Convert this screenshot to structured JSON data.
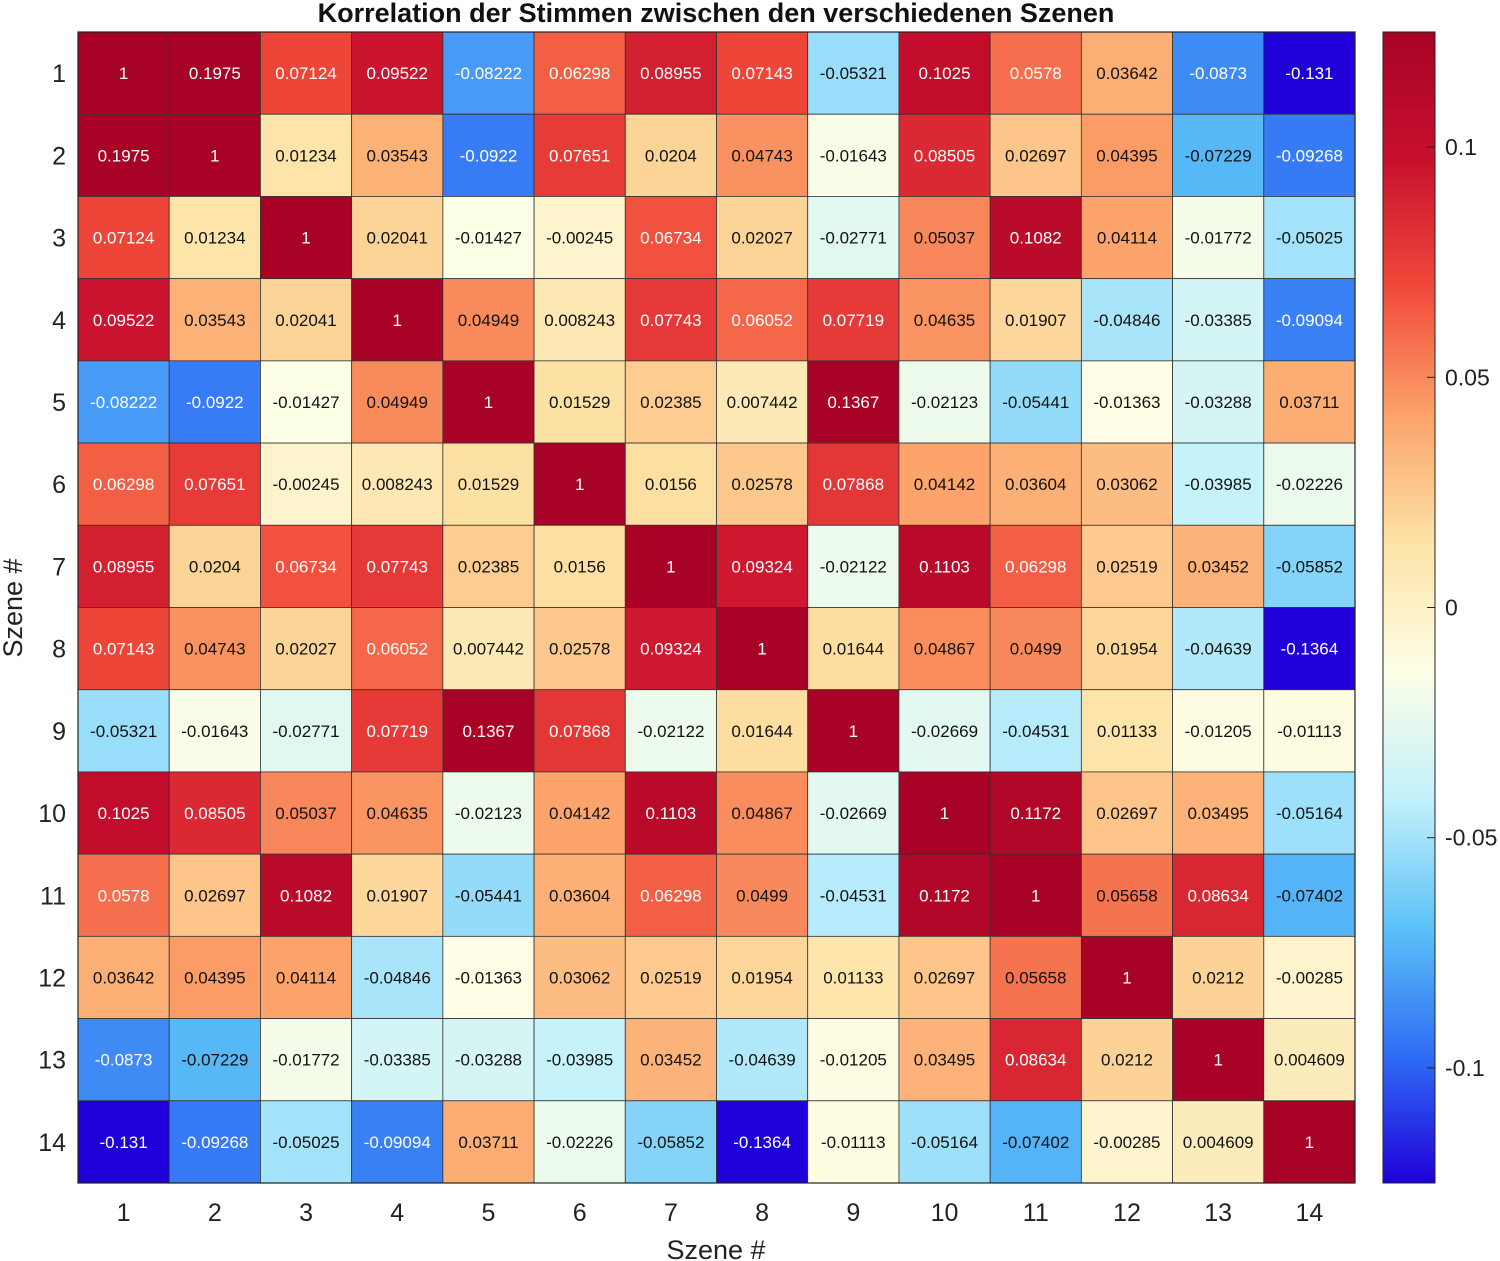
{
  "chart_data": {
    "type": "heatmap",
    "title": "Korrelation der Stimmen zwischen den verschiedenen Szenen",
    "xlabel": "Szene #",
    "ylabel": "Szene #",
    "x_categories": [
      "1",
      "2",
      "3",
      "4",
      "5",
      "6",
      "7",
      "8",
      "9",
      "10",
      "11",
      "12",
      "13",
      "14"
    ],
    "y_categories": [
      "1",
      "2",
      "3",
      "4",
      "5",
      "6",
      "7",
      "8",
      "9",
      "10",
      "11",
      "12",
      "13",
      "14"
    ],
    "values": [
      [
        "1",
        "0.1975",
        "0.07124",
        "0.09522",
        "-0.08222",
        "0.06298",
        "0.08955",
        "0.07143",
        "-0.05321",
        "0.1025",
        "0.0578",
        "0.03642",
        "-0.0873",
        "-0.131"
      ],
      [
        "0.1975",
        "1",
        "0.01234",
        "0.03543",
        "-0.0922",
        "0.07651",
        "0.0204",
        "0.04743",
        "-0.01643",
        "0.08505",
        "0.02697",
        "0.04395",
        "-0.07229",
        "-0.09268"
      ],
      [
        "0.07124",
        "0.01234",
        "1",
        "0.02041",
        "-0.01427",
        "-0.00245",
        "0.06734",
        "0.02027",
        "-0.02771",
        "0.05037",
        "0.1082",
        "0.04114",
        "-0.01772",
        "-0.05025"
      ],
      [
        "0.09522",
        "0.03543",
        "0.02041",
        "1",
        "0.04949",
        "0.008243",
        "0.07743",
        "0.06052",
        "0.07719",
        "0.04635",
        "0.01907",
        "-0.04846",
        "-0.03385",
        "-0.09094"
      ],
      [
        "-0.08222",
        "-0.0922",
        "-0.01427",
        "0.04949",
        "1",
        "0.01529",
        "0.02385",
        "0.007442",
        "0.1367",
        "-0.02123",
        "-0.05441",
        "-0.01363",
        "-0.03288",
        "0.03711"
      ],
      [
        "0.06298",
        "0.07651",
        "-0.00245",
        "0.008243",
        "0.01529",
        "1",
        "0.0156",
        "0.02578",
        "0.07868",
        "0.04142",
        "0.03604",
        "0.03062",
        "-0.03985",
        "-0.02226"
      ],
      [
        "0.08955",
        "0.0204",
        "0.06734",
        "0.07743",
        "0.02385",
        "0.0156",
        "1",
        "0.09324",
        "-0.02122",
        "0.1103",
        "0.06298",
        "0.02519",
        "0.03452",
        "-0.05852"
      ],
      [
        "0.07143",
        "0.04743",
        "0.02027",
        "0.06052",
        "0.007442",
        "0.02578",
        "0.09324",
        "1",
        "0.01644",
        "0.04867",
        "0.0499",
        "0.01954",
        "-0.04639",
        "-0.1364"
      ],
      [
        "-0.05321",
        "-0.01643",
        "-0.02771",
        "0.07719",
        "0.1367",
        "0.07868",
        "-0.02122",
        "0.01644",
        "1",
        "-0.02669",
        "-0.04531",
        "0.01133",
        "-0.01205",
        "-0.01113"
      ],
      [
        "0.1025",
        "0.08505",
        "0.05037",
        "0.04635",
        "-0.02123",
        "0.04142",
        "0.1103",
        "0.04867",
        "-0.02669",
        "1",
        "0.1172",
        "0.02697",
        "0.03495",
        "-0.05164"
      ],
      [
        "0.0578",
        "0.02697",
        "0.1082",
        "0.01907",
        "-0.05441",
        "0.03604",
        "0.06298",
        "0.0499",
        "-0.04531",
        "0.1172",
        "1",
        "0.05658",
        "0.08634",
        "-0.07402"
      ],
      [
        "0.03642",
        "0.04395",
        "0.04114",
        "-0.04846",
        "-0.01363",
        "0.03062",
        "0.02519",
        "0.01954",
        "0.01133",
        "0.02697",
        "0.05658",
        "1",
        "0.0212",
        "-0.00285"
      ],
      [
        "-0.0873",
        "-0.07229",
        "-0.01772",
        "-0.03385",
        "-0.03288",
        "-0.03985",
        "0.03452",
        "-0.04639",
        "-0.01205",
        "0.03495",
        "0.08634",
        "0.0212",
        "1",
        "0.004609"
      ],
      [
        "-0.131",
        "-0.09268",
        "-0.05025",
        "-0.09094",
        "0.03711",
        "-0.02226",
        "-0.05852",
        "-0.1364",
        "-0.01113",
        "-0.05164",
        "-0.07402",
        "-0.00285",
        "0.004609",
        "1"
      ]
    ],
    "colorbar": {
      "range": [
        -0.125,
        0.125
      ],
      "ticks": [
        "0.1",
        "0.05",
        "0",
        "-0.05",
        "-0.1"
      ],
      "tick_values": [
        0.1,
        0.05,
        0,
        -0.05,
        -0.1
      ],
      "colormap_stops": [
        "#1f00d9",
        "#2f6df5",
        "#5cc1f7",
        "#c2f1fb",
        "#fdfee6",
        "#fde3a6",
        "#fca36a",
        "#f04a3a",
        "#c8102e",
        "#a80326"
      ]
    },
    "grid": true,
    "legend": "colorbar-right"
  }
}
